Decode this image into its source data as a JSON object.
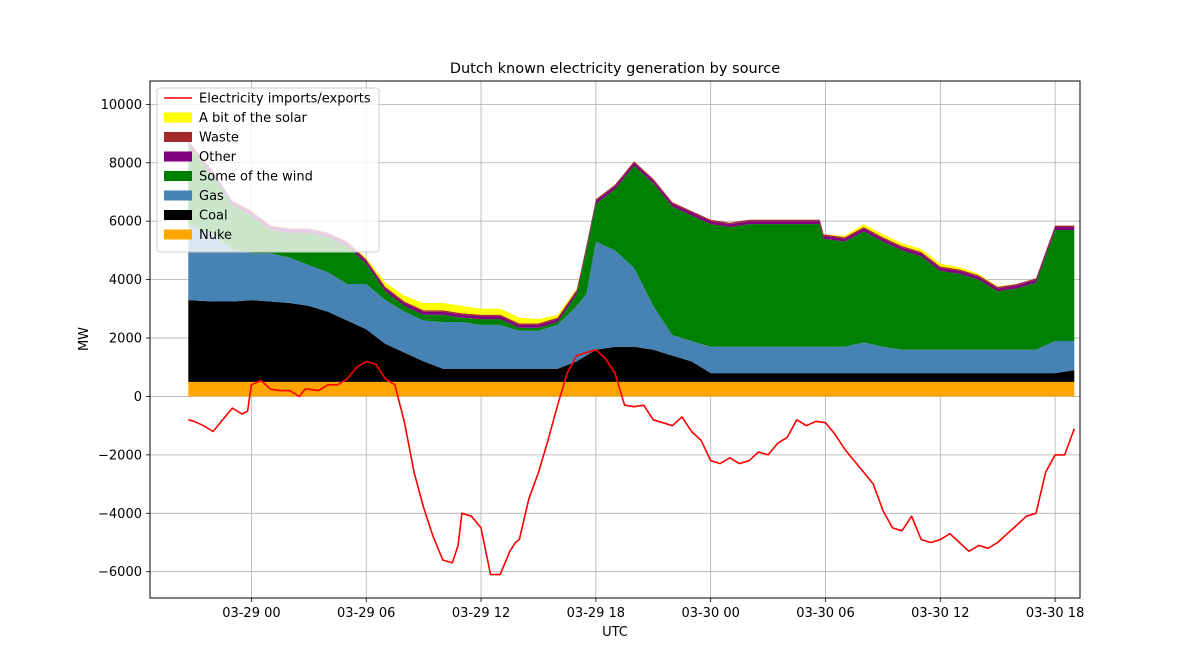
{
  "chart_data": {
    "type": "area",
    "title": "Dutch known electricity generation by source",
    "xlabel": "UTC",
    "ylabel": "MW",
    "ylim": [
      -6900,
      10800
    ],
    "xlim_hours": [
      -5.3,
      43.3
    ],
    "yticks": [
      10000,
      8000,
      6000,
      4000,
      2000,
      0,
      -2000,
      -4000,
      -6000
    ],
    "ytick_labels": [
      "10000",
      "8000",
      "6000",
      "4000",
      "2000",
      "0",
      "−2000",
      "−4000",
      "−6000"
    ],
    "xticks": [
      {
        "label": "03-29 00",
        "hour": 0
      },
      {
        "label": "03-29 06",
        "hour": 6
      },
      {
        "label": "03-29 12",
        "hour": 12
      },
      {
        "label": "03-29 18",
        "hour": 18
      },
      {
        "label": "03-30 00",
        "hour": 24
      },
      {
        "label": "03-30 06",
        "hour": 30
      },
      {
        "label": "03-30 12",
        "hour": 36
      },
      {
        "label": "03-30 18",
        "hour": 42
      }
    ],
    "grid": true,
    "legend_position": "top-left",
    "colors": {
      "nuke": "#ffa500",
      "coal": "#000000",
      "gas": "#4682b4",
      "wind": "#008000",
      "other": "#800080",
      "waste": "#a52a2a",
      "solar": "#ffff00",
      "imports": "#ff0000"
    },
    "legend": [
      {
        "key": "imports",
        "label": "Electricity imports/exports",
        "kind": "line"
      },
      {
        "key": "solar",
        "label": "A bit of the solar",
        "kind": "patch"
      },
      {
        "key": "waste",
        "label": "Waste",
        "kind": "patch"
      },
      {
        "key": "other",
        "label": "Other",
        "kind": "patch"
      },
      {
        "key": "wind",
        "label": "Some of the wind",
        "kind": "patch"
      },
      {
        "key": "gas",
        "label": "Gas",
        "kind": "patch"
      },
      {
        "key": "coal",
        "label": "Coal",
        "kind": "patch"
      },
      {
        "key": "nuke",
        "label": "Nuke",
        "kind": "patch"
      }
    ],
    "stack_order": [
      "nuke",
      "coal",
      "gas",
      "wind",
      "other",
      "waste",
      "solar"
    ],
    "x_hours": [
      -3.3,
      -2,
      -1,
      0,
      1,
      2,
      3,
      4,
      5,
      6,
      7,
      8,
      9,
      10,
      11,
      12,
      13,
      14,
      15,
      16,
      17,
      17.5,
      18,
      19,
      20,
      21,
      22,
      23,
      24,
      25,
      26,
      27,
      28,
      29,
      29.7,
      29.9,
      31,
      32,
      33,
      34,
      35,
      36,
      37,
      38,
      39,
      40,
      41,
      42,
      43
    ],
    "series": {
      "nuke": [
        500,
        500,
        500,
        500,
        500,
        500,
        500,
        500,
        500,
        500,
        500,
        500,
        500,
        500,
        500,
        500,
        500,
        500,
        500,
        500,
        500,
        500,
        500,
        500,
        500,
        500,
        500,
        500,
        500,
        500,
        500,
        500,
        500,
        500,
        500,
        500,
        500,
        500,
        500,
        500,
        500,
        500,
        500,
        500,
        500,
        500,
        500,
        500,
        500
      ],
      "coal": [
        2800,
        2750,
        2750,
        2800,
        2750,
        2700,
        2600,
        2400,
        2100,
        1800,
        1300,
        1000,
        700,
        450,
        450,
        450,
        450,
        450,
        450,
        450,
        700,
        900,
        1100,
        1200,
        1200,
        1100,
        900,
        700,
        300,
        300,
        300,
        300,
        300,
        300,
        300,
        300,
        300,
        300,
        300,
        300,
        300,
        300,
        300,
        300,
        300,
        300,
        300,
        300,
        400
      ],
      "gas": [
        2600,
        2300,
        1800,
        1600,
        1650,
        1550,
        1400,
        1350,
        1250,
        1550,
        1500,
        1400,
        1400,
        1600,
        1600,
        1500,
        1500,
        1300,
        1300,
        1500,
        1900,
        2100,
        3700,
        3300,
        2700,
        1500,
        700,
        700,
        900,
        900,
        900,
        900,
        900,
        900,
        900,
        900,
        900,
        1050,
        900,
        800,
        800,
        800,
        800,
        800,
        800,
        800,
        800,
        1100,
        1000
      ],
      "wind": [
        2700,
        2000,
        1500,
        1300,
        800,
        850,
        1100,
        1200,
        1300,
        700,
        300,
        200,
        200,
        250,
        150,
        200,
        200,
        100,
        100,
        100,
        400,
        1500,
        1300,
        2100,
        3500,
        4200,
        4400,
        4300,
        4200,
        4100,
        4200,
        4200,
        4200,
        4200,
        4200,
        3700,
        3600,
        3800,
        3600,
        3400,
        3200,
        2700,
        2600,
        2400,
        2000,
        2100,
        2300,
        3800,
        3800
      ],
      "other": [
        100,
        100,
        100,
        100,
        100,
        100,
        100,
        100,
        100,
        100,
        100,
        100,
        100,
        100,
        100,
        100,
        100,
        100,
        100,
        100,
        100,
        100,
        100,
        100,
        100,
        100,
        100,
        100,
        100,
        100,
        100,
        100,
        100,
        100,
        100,
        100,
        100,
        100,
        100,
        100,
        100,
        100,
        100,
        100,
        100,
        100,
        100,
        100,
        100
      ],
      "waste": [
        50,
        50,
        50,
        50,
        50,
        50,
        50,
        50,
        50,
        50,
        50,
        50,
        50,
        50,
        50,
        50,
        50,
        50,
        50,
        50,
        50,
        50,
        50,
        50,
        50,
        50,
        50,
        50,
        50,
        50,
        50,
        50,
        50,
        50,
        50,
        50,
        50,
        50,
        50,
        50,
        50,
        50,
        50,
        50,
        50,
        50,
        50,
        50,
        50
      ],
      "solar": [
        0,
        0,
        0,
        0,
        0,
        0,
        0,
        0,
        0,
        50,
        150,
        200,
        250,
        250,
        250,
        200,
        200,
        200,
        150,
        100,
        50,
        0,
        0,
        0,
        0,
        0,
        0,
        0,
        0,
        0,
        0,
        0,
        0,
        0,
        0,
        0,
        50,
        100,
        100,
        100,
        100,
        100,
        80,
        50,
        20,
        0,
        0,
        0,
        0
      ]
    },
    "imports": {
      "name": "Electricity imports/exports",
      "x_hours": [
        -3.3,
        -3,
        -2.5,
        -2,
        -1.5,
        -1,
        -0.5,
        -0.2,
        0,
        0.5,
        1,
        1.5,
        2,
        2.5,
        2.8,
        3,
        3.5,
        4,
        4.5,
        5,
        5.5,
        6,
        6.5,
        7,
        7.5,
        8,
        8.5,
        9,
        9.5,
        10,
        10.5,
        10.8,
        11,
        11.5,
        12,
        12.5,
        13,
        13.5,
        13.8,
        14,
        14.5,
        15,
        15.5,
        16,
        16.5,
        17,
        17.5,
        18,
        18.5,
        19,
        19.5,
        20,
        20.5,
        21,
        21.5,
        22,
        22.5,
        23,
        23.5,
        24,
        24.5,
        25,
        25.5,
        26,
        26.5,
        27,
        27.5,
        28,
        28.5,
        29,
        29.5,
        30,
        30.5,
        31,
        31.5,
        32,
        32.5,
        33,
        33.5,
        34,
        34.5,
        35,
        35.5,
        36,
        36.5,
        37,
        37.5,
        38,
        38.5,
        39,
        39.5,
        40,
        40.5,
        41,
        41.5,
        42,
        42.5,
        43
      ],
      "values": [
        -800,
        -850,
        -1000,
        -1200,
        -800,
        -400,
        -600,
        -500,
        400,
        550,
        250,
        200,
        200,
        0,
        250,
        250,
        200,
        400,
        400,
        600,
        1000,
        1200,
        1100,
        600,
        400,
        -900,
        -2600,
        -3800,
        -4800,
        -5600,
        -5700,
        -5100,
        -4000,
        -4100,
        -4500,
        -6100,
        -6100,
        -5300,
        -5000,
        -4900,
        -3500,
        -2600,
        -1500,
        -300,
        800,
        1400,
        1500,
        1600,
        1300,
        800,
        -300,
        -350,
        -300,
        -800,
        -900,
        -1000,
        -700,
        -1200,
        -1500,
        -2200,
        -2300,
        -2100,
        -2300,
        -2200,
        -1900,
        -2000,
        -1600,
        -1400,
        -800,
        -1000,
        -850,
        -900,
        -1300,
        -1800,
        -2200,
        -2600,
        -3000,
        -3900,
        -4500,
        -4600,
        -4100,
        -4900,
        -5000,
        -4900,
        -4700,
        -5000,
        -5300,
        -5100,
        -5200,
        -5000,
        -4700,
        -4400,
        -4100,
        -4000,
        -2600,
        -2000,
        -2000,
        -1100
      ]
    }
  }
}
